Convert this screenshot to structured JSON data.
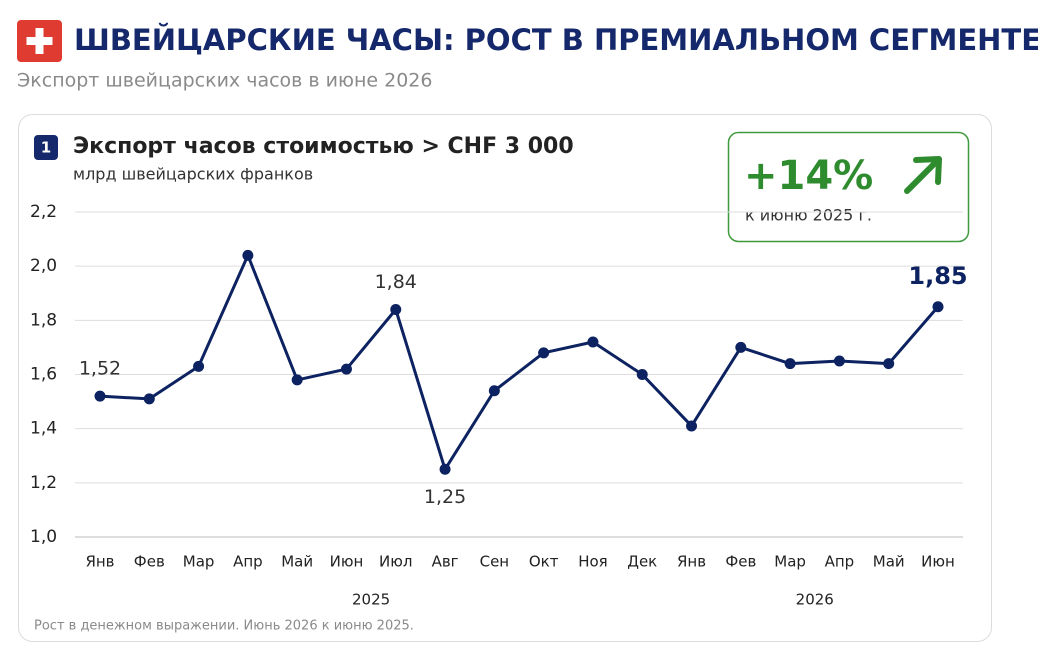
{
  "header": {
    "title": "ШВЕЙЦАРСКИЕ ЧАСЫ: РОСТ В ПРЕМИАЛЬНОМ СЕГМЕНТЕ",
    "subtitle": "Экспорт швейцарских часов в июне 2026"
  },
  "chart_data": {
    "type": "line",
    "badge": "1",
    "title": "Экспорт часов стоимостью > CHF 3 000",
    "subtitle": "млрд швейцарских франков",
    "categories": [
      "Янв",
      "Фев",
      "Мар",
      "Апр",
      "Май",
      "Июн",
      "Июл",
      "Авг",
      "Сен",
      "Окт",
      "Ноя",
      "Дек",
      "Янв",
      "Фев",
      "Мар",
      "Апр",
      "Май",
      "Июн"
    ],
    "x_groups": [
      "2025",
      "2026"
    ],
    "series": [
      {
        "name": "Экспорт",
        "color": "#0d2260",
        "values": [
          1.52,
          1.51,
          1.63,
          2.04,
          1.58,
          1.62,
          1.84,
          1.25,
          1.54,
          1.68,
          1.72,
          1.6,
          1.41,
          1.7,
          1.64,
          1.65,
          1.64,
          1.85
        ],
        "value_labels": [
          "1,52",
          null,
          null,
          null,
          null,
          null,
          "1,84",
          "1,25",
          null,
          null,
          null,
          null,
          null,
          null,
          null,
          null,
          null,
          "1,85"
        ]
      }
    ],
    "ylim": [
      1.0,
      2.2
    ],
    "yticks": [
      {
        "value": 1.0,
        "label": "1,0"
      },
      {
        "value": 1.2,
        "label": "1,2"
      },
      {
        "value": 1.4,
        "label": "1,4"
      },
      {
        "value": 1.6,
        "label": "1,6"
      },
      {
        "value": 1.8,
        "label": "1,8"
      },
      {
        "value": 2.0,
        "label": "2,0"
      },
      {
        "value": 2.2,
        "label": "2,2"
      }
    ],
    "grid": true,
    "callout": {
      "headline": "+14%",
      "text": "к июню 2025 г."
    },
    "footnote": "Рост в денежном выражении. Июнь 2026 к июню 2025."
  }
}
